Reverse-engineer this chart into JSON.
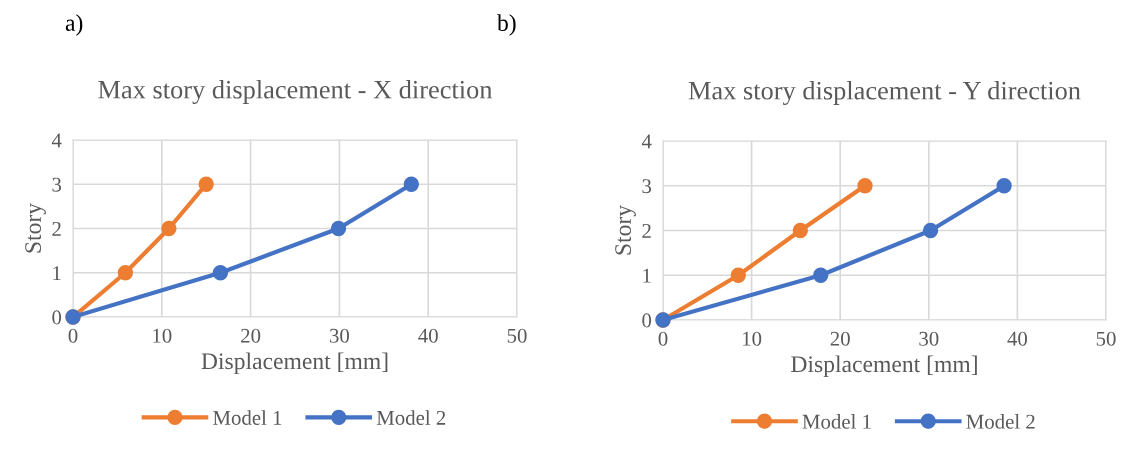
{
  "chart_data": [
    {
      "type": "line",
      "title": "Max story displacement - X direction",
      "xlabel": "Displacement [mm]",
      "ylabel": "Story",
      "annotations": [
        "a)"
      ],
      "xlim": [
        0,
        50
      ],
      "xticks": [
        0,
        10,
        20,
        30,
        40,
        50
      ],
      "ylim": [
        0,
        4
      ],
      "yticks": [
        0,
        1,
        2,
        3,
        4
      ],
      "grid": true,
      "legend": "bottom",
      "marker": "circle",
      "line_style": "solid",
      "series": [
        {
          "name": "Model 1",
          "color": "#ed7d31",
          "x": [
            0,
            5.9,
            10.8,
            15.0
          ],
          "values": [
            0,
            1,
            2,
            3
          ]
        },
        {
          "name": "Model 2",
          "color": "#4472c4",
          "x": [
            0,
            16.6,
            29.9,
            38.1
          ],
          "values": [
            0,
            1,
            2,
            3
          ]
        }
      ]
    },
    {
      "type": "line",
      "title": "Max story displacement - Y direction",
      "xlabel": "Displacement [mm]",
      "ylabel": "Story",
      "annotations": [
        "b)"
      ],
      "xlim": [
        0,
        50
      ],
      "xticks": [
        0,
        10,
        20,
        30,
        40,
        50
      ],
      "ylim": [
        0,
        4
      ],
      "yticks": [
        0,
        1,
        2,
        3,
        4
      ],
      "grid": true,
      "legend": "bottom",
      "marker": "circle",
      "line_style": "solid",
      "series": [
        {
          "name": "Model 1",
          "color": "#ed7d31",
          "x": [
            0,
            8.5,
            15.5,
            22.8
          ],
          "values": [
            0,
            1,
            2,
            3
          ]
        },
        {
          "name": "Model 2",
          "color": "#4472c4",
          "x": [
            0,
            17.8,
            30.2,
            38.5
          ],
          "values": [
            0,
            1,
            2,
            3
          ]
        }
      ]
    }
  ]
}
